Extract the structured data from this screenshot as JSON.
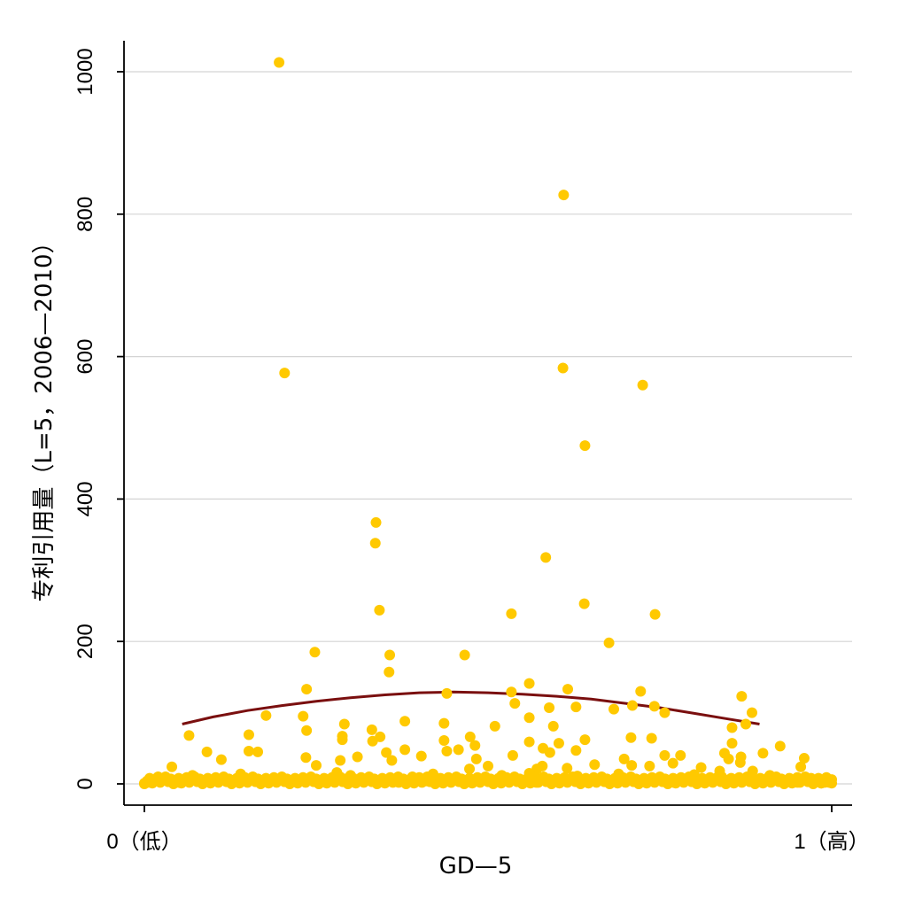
{
  "chart_data": {
    "type": "scatter",
    "xlabel": "GD—5",
    "ylabel": "专利引用量（L=5，2006—2010）",
    "xlim": [
      0,
      1
    ],
    "ylim": [
      0,
      1000
    ],
    "x_ticks": [
      {
        "value": 0,
        "label": "0（低）"
      },
      {
        "value": 1,
        "label": "1（高）"
      }
    ],
    "y_ticks": [
      {
        "value": 0,
        "label": "0"
      },
      {
        "value": 200,
        "label": "200"
      },
      {
        "value": 400,
        "label": "400"
      },
      {
        "value": 600,
        "label": "600"
      },
      {
        "value": 800,
        "label": "800"
      },
      {
        "value": 1000,
        "label": "1000"
      }
    ],
    "grid": "horizontal",
    "marker_color": "#ffc900",
    "fit_color": "#7a0f0f",
    "points": [
      [
        0.196,
        1013
      ],
      [
        0.61,
        827
      ],
      [
        0.204,
        577
      ],
      [
        0.609,
        584
      ],
      [
        0.725,
        560
      ],
      [
        0.641,
        475
      ],
      [
        0.337,
        367
      ],
      [
        0.336,
        338
      ],
      [
        0.342,
        244
      ],
      [
        0.584,
        318
      ],
      [
        0.64,
        253
      ],
      [
        0.743,
        238
      ],
      [
        0.534,
        239
      ],
      [
        0.676,
        198
      ],
      [
        0.248,
        185
      ],
      [
        0.357,
        181
      ],
      [
        0.466,
        181
      ],
      [
        0.356,
        157
      ],
      [
        0.236,
        133
      ],
      [
        0.534,
        129
      ],
      [
        0.56,
        141
      ],
      [
        0.616,
        133
      ],
      [
        0.722,
        130
      ],
      [
        0.869,
        123
      ],
      [
        0.44,
        127
      ],
      [
        0.539,
        113
      ],
      [
        0.589,
        107
      ],
      [
        0.628,
        108
      ],
      [
        0.71,
        110
      ],
      [
        0.742,
        109
      ],
      [
        0.683,
        105
      ],
      [
        0.177,
        96
      ],
      [
        0.231,
        95
      ],
      [
        0.56,
        93
      ],
      [
        0.757,
        100
      ],
      [
        0.884,
        100
      ],
      [
        0.236,
        75
      ],
      [
        0.291,
        84
      ],
      [
        0.379,
        88
      ],
      [
        0.436,
        85
      ],
      [
        0.51,
        81
      ],
      [
        0.595,
        81
      ],
      [
        0.331,
        76
      ],
      [
        0.855,
        79
      ],
      [
        0.875,
        84
      ],
      [
        0.065,
        68
      ],
      [
        0.152,
        69
      ],
      [
        0.288,
        67
      ],
      [
        0.343,
        66
      ],
      [
        0.288,
        62
      ],
      [
        0.436,
        61
      ],
      [
        0.474,
        66
      ],
      [
        0.56,
        59
      ],
      [
        0.603,
        57
      ],
      [
        0.641,
        62
      ],
      [
        0.708,
        65
      ],
      [
        0.738,
        64
      ],
      [
        0.855,
        57
      ],
      [
        0.9,
        43
      ],
      [
        0.925,
        53
      ],
      [
        0.091,
        45
      ],
      [
        0.152,
        46
      ],
      [
        0.165,
        45
      ],
      [
        0.332,
        60
      ],
      [
        0.352,
        44
      ],
      [
        0.379,
        48
      ],
      [
        0.457,
        48
      ],
      [
        0.536,
        40
      ],
      [
        0.483,
        35
      ],
      [
        0.44,
        46
      ],
      [
        0.481,
        54
      ],
      [
        0.58,
        50
      ],
      [
        0.59,
        44
      ],
      [
        0.628,
        47
      ],
      [
        0.698,
        35
      ],
      [
        0.757,
        40
      ],
      [
        0.78,
        40
      ],
      [
        0.844,
        43
      ],
      [
        0.85,
        35
      ],
      [
        0.868,
        38
      ],
      [
        0.96,
        36
      ],
      [
        0.04,
        24
      ],
      [
        0.112,
        34
      ],
      [
        0.235,
        37
      ],
      [
        0.25,
        26
      ],
      [
        0.285,
        33
      ],
      [
        0.31,
        38
      ],
      [
        0.36,
        33
      ],
      [
        0.403,
        39
      ],
      [
        0.473,
        21
      ],
      [
        0.5,
        25
      ],
      [
        0.571,
        21
      ],
      [
        0.579,
        25
      ],
      [
        0.615,
        22
      ],
      [
        0.655,
        27
      ],
      [
        0.709,
        26
      ],
      [
        0.735,
        25
      ],
      [
        0.769,
        29
      ],
      [
        0.81,
        23
      ],
      [
        0.837,
        18
      ],
      [
        0.867,
        30
      ],
      [
        0.885,
        18
      ],
      [
        0.955,
        24
      ],
      [
        0.02,
        10
      ],
      [
        0.07,
        12
      ],
      [
        0.14,
        14
      ],
      [
        0.2,
        9
      ],
      [
        0.28,
        16
      ],
      [
        0.3,
        12
      ],
      [
        0.39,
        10
      ],
      [
        0.42,
        14
      ],
      [
        0.52,
        12
      ],
      [
        0.56,
        15
      ],
      [
        0.63,
        11
      ],
      [
        0.69,
        14
      ],
      [
        0.75,
        9
      ],
      [
        0.8,
        13
      ],
      [
        0.84,
        10
      ],
      [
        0.91,
        12
      ],
      [
        0.97,
        8
      ],
      [
        0.01,
        3
      ],
      [
        0.03,
        5
      ],
      [
        0.05,
        2
      ],
      [
        0.08,
        4
      ],
      [
        0.1,
        6
      ],
      [
        0.12,
        3
      ],
      [
        0.15,
        5
      ],
      [
        0.18,
        2
      ],
      [
        0.22,
        4
      ],
      [
        0.26,
        6
      ],
      [
        0.32,
        3
      ],
      [
        0.34,
        5
      ],
      [
        0.37,
        2
      ],
      [
        0.41,
        4
      ],
      [
        0.45,
        6
      ],
      [
        0.48,
        3
      ],
      [
        0.53,
        5
      ],
      [
        0.57,
        2
      ],
      [
        0.6,
        4
      ],
      [
        0.66,
        6
      ],
      [
        0.7,
        3
      ],
      [
        0.73,
        5
      ],
      [
        0.77,
        2
      ],
      [
        0.82,
        4
      ],
      [
        0.86,
        6
      ],
      [
        0.89,
        3
      ],
      [
        0.93,
        5
      ],
      [
        0.95,
        2
      ],
      [
        0.98,
        4
      ],
      [
        1.0,
        1
      ],
      [
        0.0,
        1
      ],
      [
        0.005,
        2
      ],
      [
        0.99,
        2
      ],
      [
        0.985,
        1
      ]
    ],
    "fit_curve": {
      "x": [
        0.055,
        0.1,
        0.15,
        0.2,
        0.25,
        0.3,
        0.35,
        0.4,
        0.45,
        0.5,
        0.55,
        0.6,
        0.65,
        0.7,
        0.75,
        0.8,
        0.85,
        0.895
      ],
      "y": [
        84,
        94,
        103,
        110,
        116,
        121,
        125,
        128,
        129,
        128,
        126,
        123,
        119,
        113,
        107,
        99,
        91,
        84
      ]
    }
  }
}
